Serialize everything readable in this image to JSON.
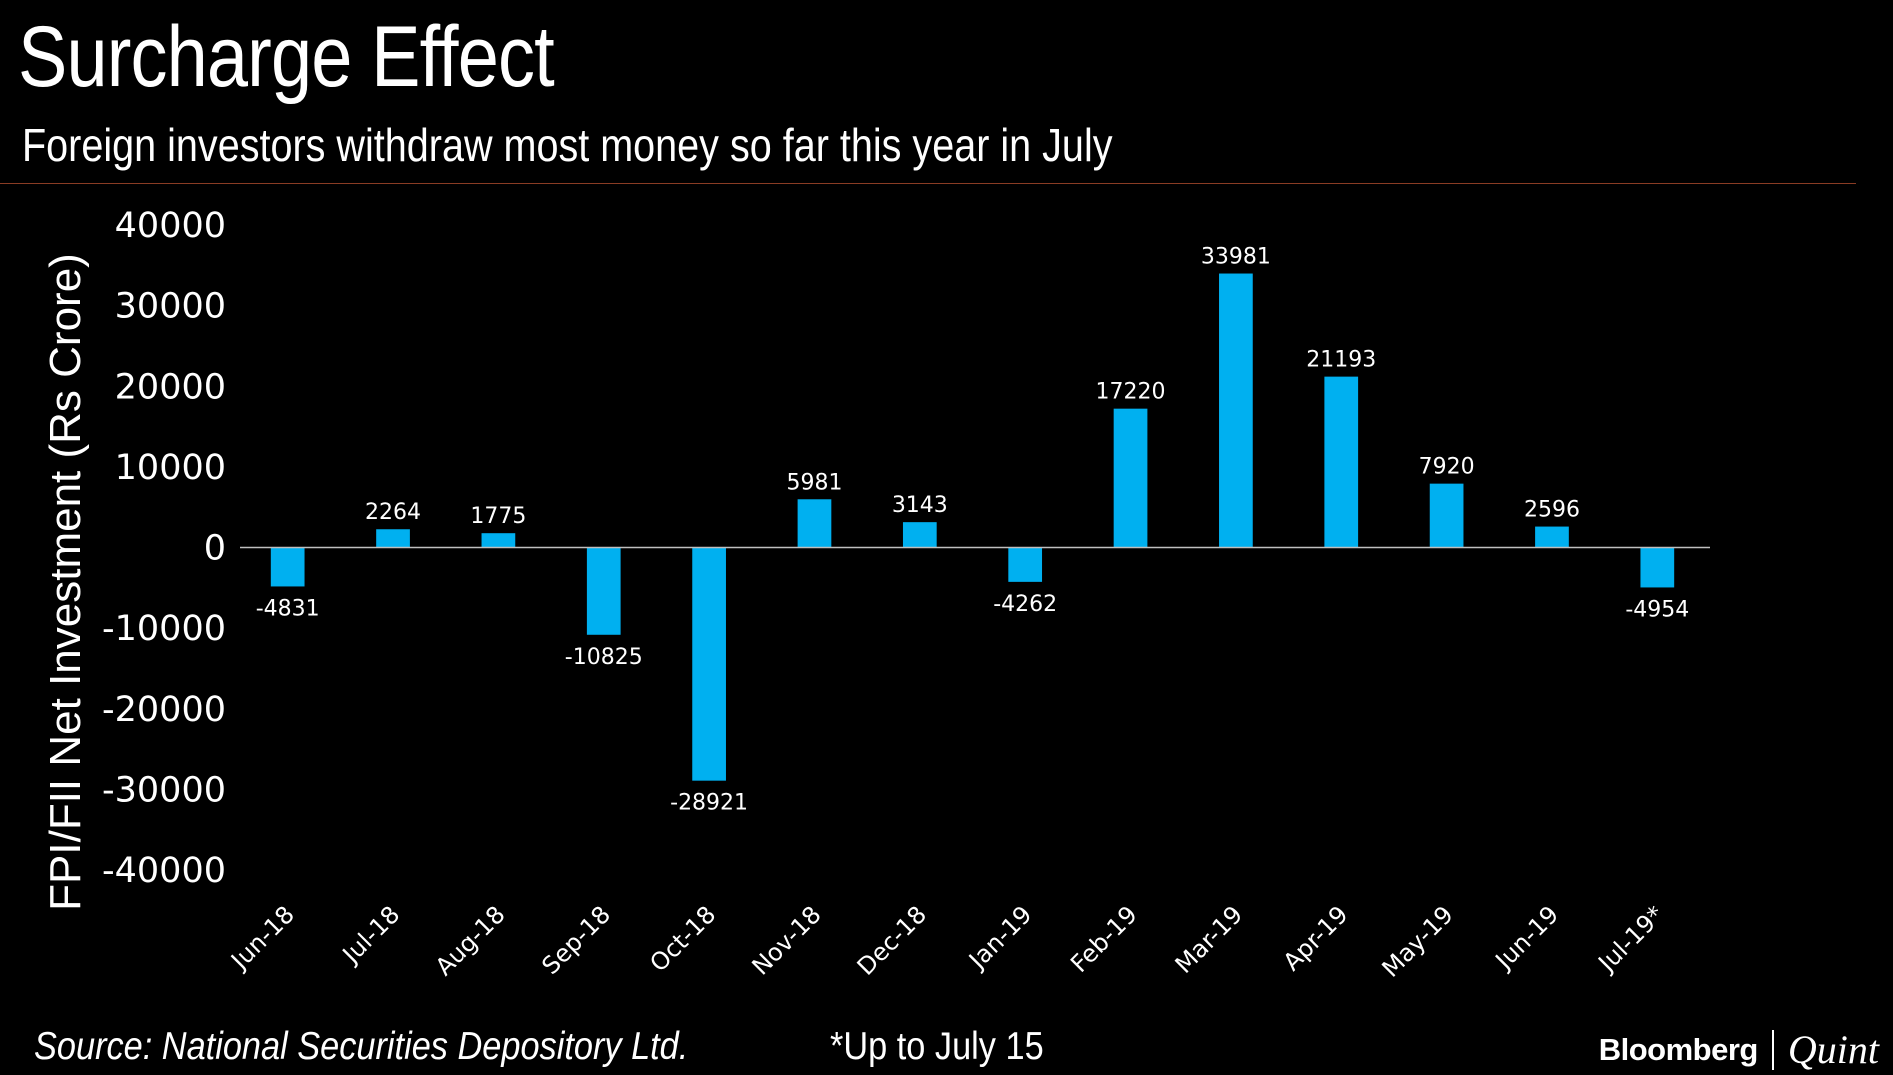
{
  "header": {
    "title": "Surcharge Effect",
    "subtitle": "Foreign investors withdraw most money so far this year in July"
  },
  "footer": {
    "source": "Source: National Securities Depository Ltd.",
    "note": "*Up to July 15",
    "brand_primary": "Bloomberg",
    "brand_secondary": "Quint"
  },
  "colors": {
    "background": "#000000",
    "bar": "#00b0f0",
    "text": "#ffffff",
    "rule": "#8a3c24",
    "zero_line": "#bfbfbf"
  },
  "chart_data": {
    "type": "bar",
    "title": "Surcharge Effect",
    "subtitle": "Foreign investors withdraw most money so far this year in July",
    "xlabel": "",
    "ylabel": "FPI/FII Net Investment (Rs Crore)",
    "categories": [
      "Jun-18",
      "Jul-18",
      "Aug-18",
      "Sep-18",
      "Oct-18",
      "Nov-18",
      "Dec-18",
      "Jan-19",
      "Feb-19",
      "Mar-19",
      "Apr-19",
      "May-19",
      "Jun-19",
      "Jul-19*"
    ],
    "values": [
      -4831,
      2264,
      1775,
      -10825,
      -28921,
      5981,
      3143,
      -4262,
      17220,
      33981,
      21193,
      7920,
      2596,
      -4954
    ],
    "data_labels": [
      "-4831",
      "2264",
      "1775",
      "-10825",
      "-28921",
      "5981",
      "3143",
      "-4262",
      "17220",
      "33981",
      "21193",
      "7920",
      "2596",
      "-4954"
    ],
    "ylim": [
      -40000,
      40000
    ],
    "yticks": [
      40000,
      30000,
      20000,
      10000,
      0,
      -10000,
      -20000,
      -30000,
      -40000
    ],
    "ytick_labels": [
      "40000",
      "30000",
      "20000",
      "10000",
      "0",
      "-10000",
      "-20000",
      "-30000",
      "-40000"
    ],
    "grid": false,
    "legend": "none"
  }
}
